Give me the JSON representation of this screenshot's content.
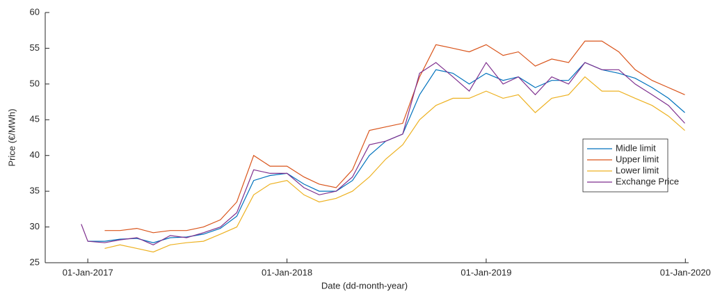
{
  "chart_data": {
    "type": "line",
    "xlabel": "Date (dd-month-year)",
    "ylabel": "Price (€/MWh)",
    "x": [
      "2016-12-20",
      "2017-01-01",
      "2017-02-01",
      "2017-03-01",
      "2017-04-01",
      "2017-05-01",
      "2017-06-01",
      "2017-07-01",
      "2017-08-01",
      "2017-09-01",
      "2017-10-01",
      "2017-11-01",
      "2017-12-01",
      "2018-01-01",
      "2018-02-01",
      "2018-03-01",
      "2018-04-01",
      "2018-05-01",
      "2018-06-01",
      "2018-07-01",
      "2018-08-01",
      "2018-09-01",
      "2018-10-01",
      "2018-11-01",
      "2018-12-01",
      "2019-01-01",
      "2019-02-01",
      "2019-03-01",
      "2019-04-01",
      "2019-05-01",
      "2019-06-01",
      "2019-07-01",
      "2019-08-01",
      "2019-09-01",
      "2019-10-01",
      "2019-11-01",
      "2019-12-01",
      "2019-12-31"
    ],
    "series": [
      {
        "name": "Midle limit",
        "color": "#0072bd",
        "values": [
          null,
          28,
          28,
          28.3,
          28.4,
          27.8,
          28.5,
          28.6,
          29,
          29.8,
          31.5,
          36.5,
          37.2,
          37.5,
          36,
          35,
          35,
          36.5,
          40,
          42,
          43,
          48.5,
          52,
          51.5,
          50,
          51.5,
          50.5,
          51,
          49.5,
          50.5,
          50.5,
          53,
          52,
          51.5,
          50.8,
          49.5,
          48,
          46
        ]
      },
      {
        "name": "Upper limit",
        "color": "#d95319",
        "values": [
          null,
          null,
          29.5,
          29.5,
          29.8,
          29.2,
          29.5,
          29.5,
          30,
          31,
          33.5,
          40,
          38.5,
          38.5,
          37,
          36,
          35.5,
          38,
          43.5,
          44,
          44.5,
          51,
          55.5,
          55,
          54.5,
          55.5,
          54,
          54.5,
          52.5,
          53.5,
          53,
          56,
          56,
          54.5,
          52,
          50.5,
          49.5,
          48.5
        ]
      },
      {
        "name": "Lower limit",
        "color": "#edb120",
        "values": [
          null,
          null,
          27,
          27.5,
          27,
          26.5,
          27.5,
          27.8,
          28,
          29,
          30,
          34.5,
          36,
          36.5,
          34.5,
          33.5,
          34,
          35,
          37,
          39.5,
          41.5,
          45,
          47,
          48,
          48,
          49,
          48,
          48.5,
          46,
          48,
          48.5,
          51,
          49,
          49,
          48,
          47,
          45.5,
          43.5
        ]
      },
      {
        "name": "Exchange Price",
        "color": "#7e2f8e",
        "values": [
          30.4,
          28,
          27.8,
          28.2,
          28.5,
          27.5,
          28.8,
          28.5,
          29.2,
          30,
          32,
          38,
          37.5,
          37.5,
          35.5,
          34.5,
          35,
          37,
          41.5,
          42,
          43,
          51.5,
          53,
          51,
          49,
          53,
          50,
          51,
          48.5,
          51,
          50,
          53,
          52,
          52,
          50,
          48.5,
          47,
          44.5
        ]
      }
    ],
    "xlim": [
      "2016-10-15",
      "2020-01-07"
    ],
    "xticks": [
      {
        "value": "2017-01-01",
        "label": "01-Jan-2017"
      },
      {
        "value": "2018-01-01",
        "label": "01-Jan-2018"
      },
      {
        "value": "2019-01-01",
        "label": "01-Jan-2019"
      },
      {
        "value": "2020-01-01",
        "label": "01-Jan-2020"
      }
    ],
    "ylim": [
      25,
      60
    ],
    "yticks": [
      25,
      30,
      35,
      40,
      45,
      50,
      55,
      60
    ],
    "grid": false,
    "legend": "east"
  }
}
